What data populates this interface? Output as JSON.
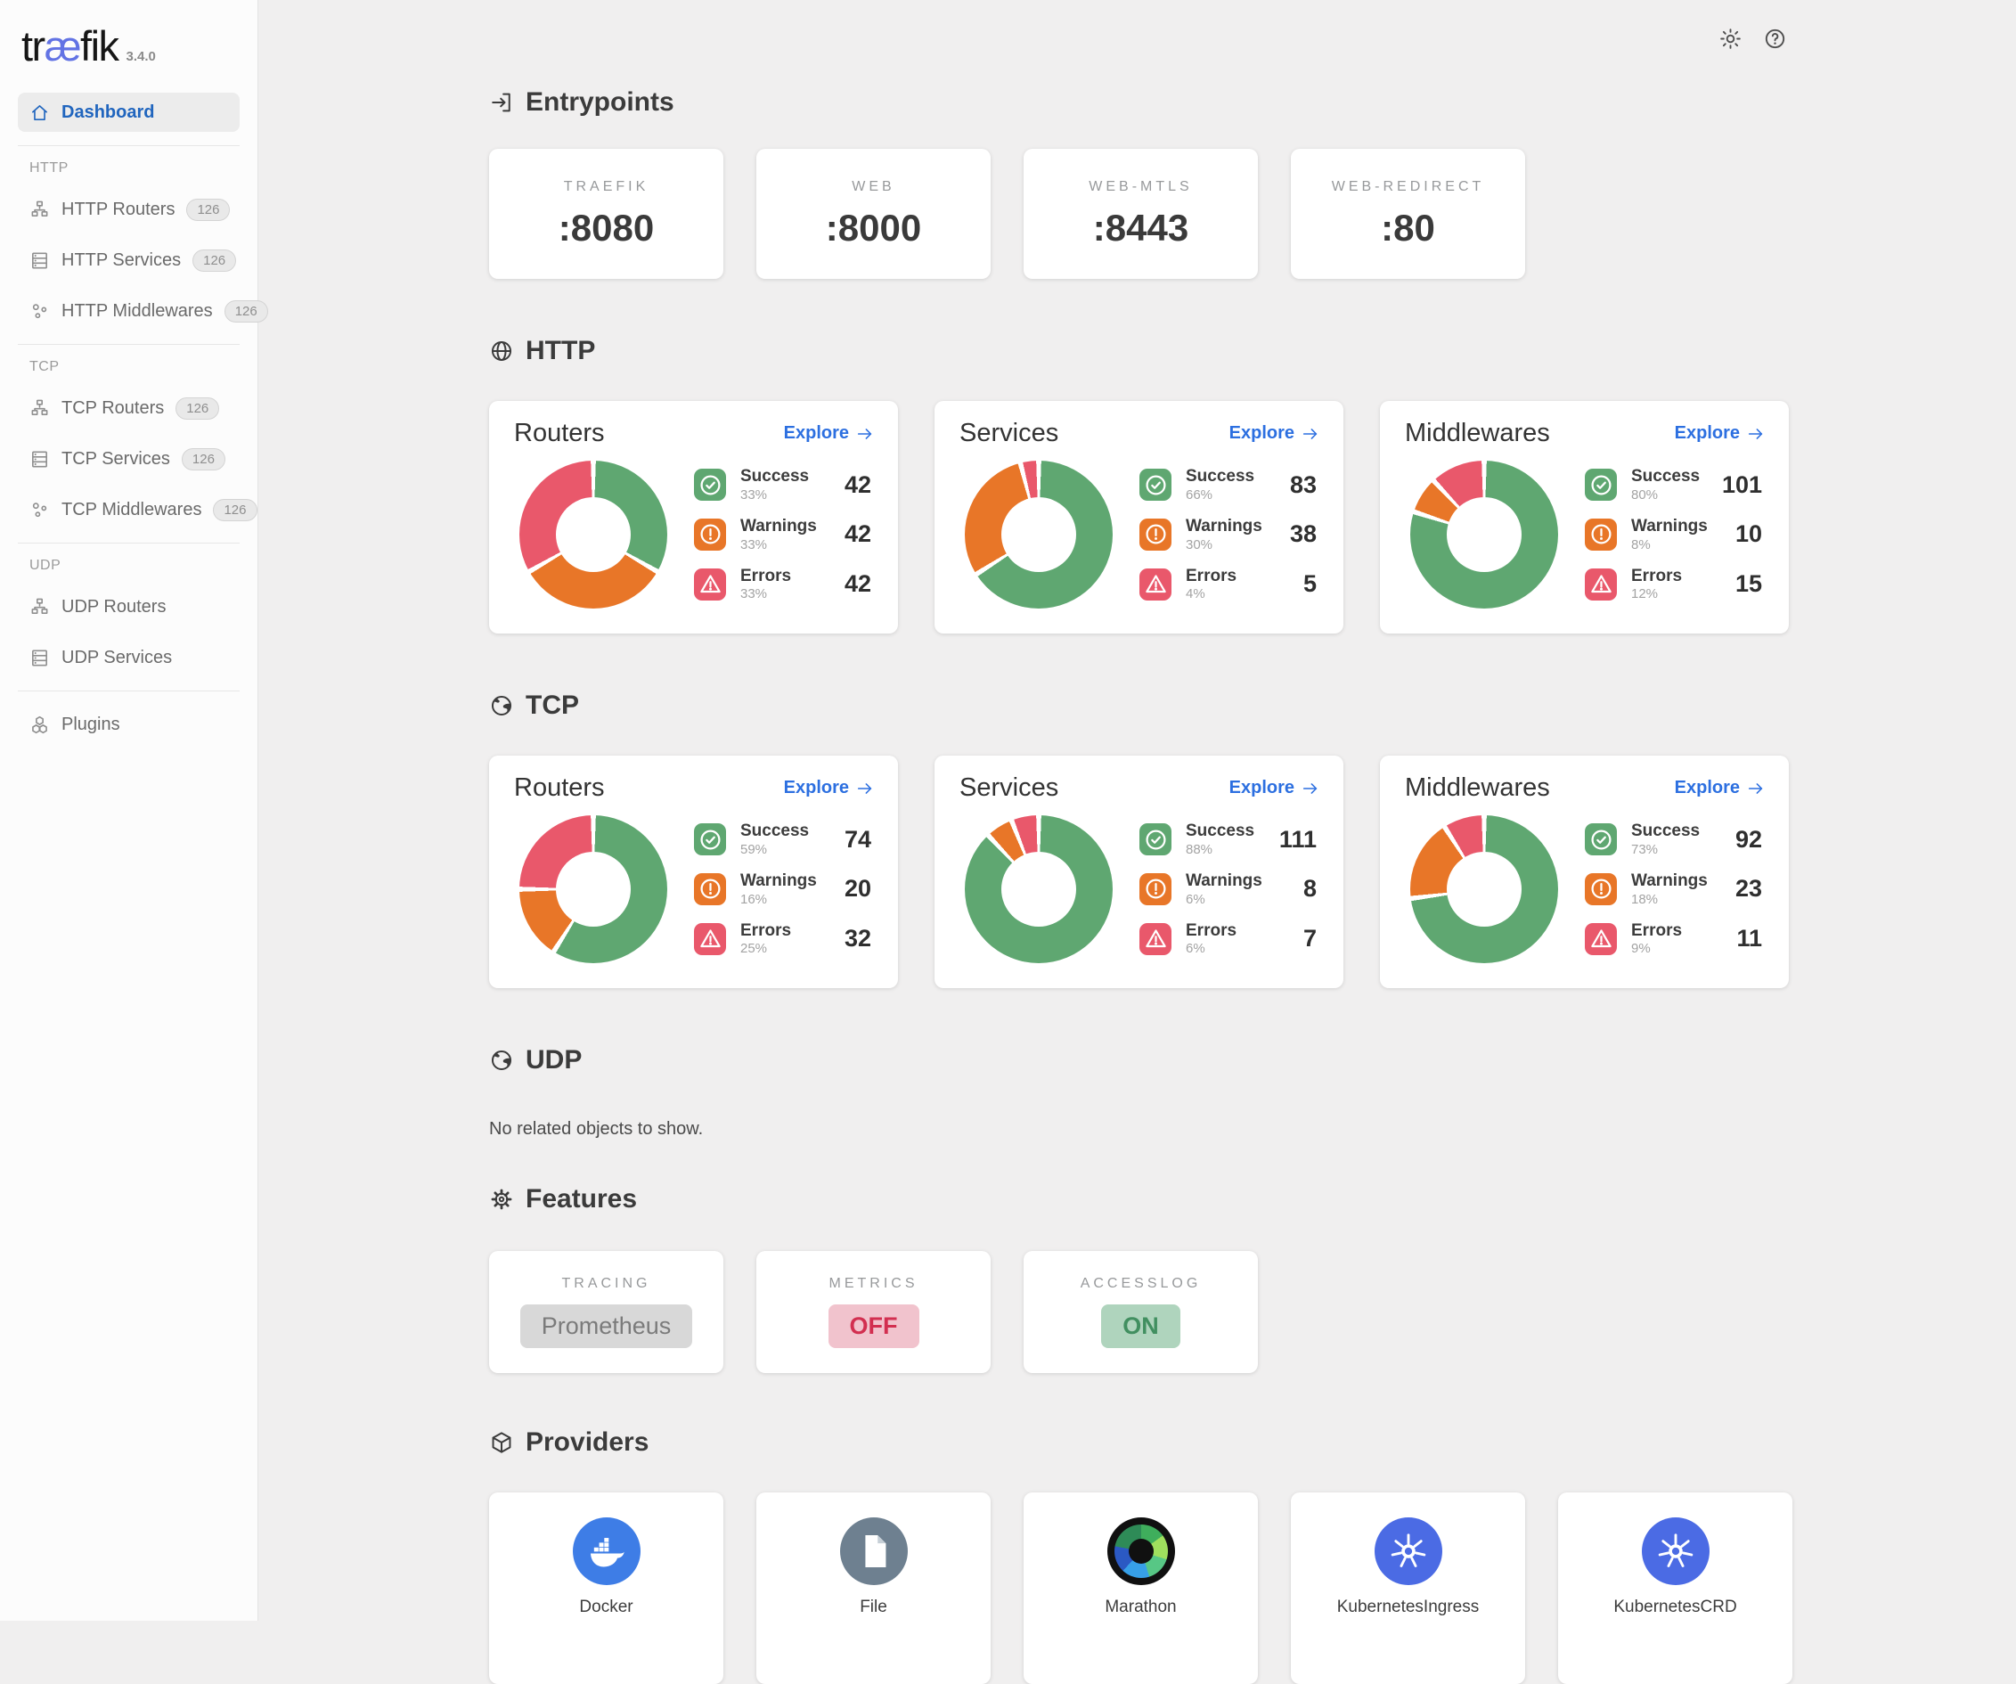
{
  "app": {
    "logo_prefix": "tr",
    "logo_ae": "æ",
    "logo_suffix": "fik",
    "version": "3.4.0"
  },
  "theme": {
    "success": "#5fa771",
    "warning": "#e87628",
    "error": "#e9586b",
    "link": "#2c6fe0",
    "active_link": "#2065be",
    "logo_accent": "#6273e4"
  },
  "topbar": {
    "icons": [
      {
        "name": "theme-toggle",
        "icon": "sun-icon"
      },
      {
        "name": "help",
        "icon": "help-icon"
      }
    ]
  },
  "sidebar": {
    "groups": [
      {
        "label": null,
        "items": [
          {
            "label": "Dashboard",
            "icon": "home-icon",
            "active": true
          }
        ]
      },
      {
        "label": "HTTP",
        "items": [
          {
            "label": "HTTP Routers",
            "icon": "routers-icon",
            "badge": "126"
          },
          {
            "label": "HTTP Services",
            "icon": "services-icon",
            "badge": "126"
          },
          {
            "label": "HTTP Middlewares",
            "icon": "middlewares-icon",
            "badge": "126"
          }
        ]
      },
      {
        "label": "TCP",
        "items": [
          {
            "label": "TCP Routers",
            "icon": "routers-icon",
            "badge": "126"
          },
          {
            "label": "TCP Services",
            "icon": "services-icon",
            "badge": "126"
          },
          {
            "label": "TCP Middlewares",
            "icon": "middlewares-icon",
            "badge": "126"
          }
        ]
      },
      {
        "label": "UDP",
        "items": [
          {
            "label": "UDP Routers",
            "icon": "routers-icon"
          },
          {
            "label": "UDP Services",
            "icon": "services-icon"
          }
        ]
      },
      {
        "label": null,
        "items": [
          {
            "label": "Plugins",
            "icon": "plugins-icon"
          }
        ]
      }
    ]
  },
  "entrypoints": {
    "title": "Entrypoints",
    "icon": "login-icon",
    "cards": [
      {
        "label": "TRAEFIK",
        "port": ":8080"
      },
      {
        "label": "WEB",
        "port": ":8000"
      },
      {
        "label": "WEB-MTLS",
        "port": ":8443"
      },
      {
        "label": "WEB-REDIRECT",
        "port": ":80"
      }
    ]
  },
  "stat_sections": [
    {
      "title": "HTTP",
      "icon": "globe-icon",
      "cards": [
        {
          "title": "Routers",
          "explore_label": "Explore",
          "stats": [
            {
              "label": "Success",
              "pct_label": "33%",
              "value": "42"
            },
            {
              "label": "Warnings",
              "pct_label": "33%",
              "value": "42"
            },
            {
              "label": "Errors",
              "pct_label": "33%",
              "value": "42"
            }
          ]
        },
        {
          "title": "Services",
          "explore_label": "Explore",
          "stats": [
            {
              "label": "Success",
              "pct_label": "66%",
              "value": "83"
            },
            {
              "label": "Warnings",
              "pct_label": "30%",
              "value": "38"
            },
            {
              "label": "Errors",
              "pct_label": "4%",
              "value": "5"
            }
          ]
        },
        {
          "title": "Middlewares",
          "explore_label": "Explore",
          "stats": [
            {
              "label": "Success",
              "pct_label": "80%",
              "value": "101"
            },
            {
              "label": "Warnings",
              "pct_label": "8%",
              "value": "10"
            },
            {
              "label": "Errors",
              "pct_label": "12%",
              "value": "15"
            }
          ]
        }
      ]
    },
    {
      "title": "TCP",
      "icon": "earth-icon",
      "cards": [
        {
          "title": "Routers",
          "explore_label": "Explore",
          "stats": [
            {
              "label": "Success",
              "pct_label": "59%",
              "value": "74"
            },
            {
              "label": "Warnings",
              "pct_label": "16%",
              "value": "20"
            },
            {
              "label": "Errors",
              "pct_label": "25%",
              "value": "32"
            }
          ]
        },
        {
          "title": "Services",
          "explore_label": "Explore",
          "stats": [
            {
              "label": "Success",
              "pct_label": "88%",
              "value": "111"
            },
            {
              "label": "Warnings",
              "pct_label": "6%",
              "value": "8"
            },
            {
              "label": "Errors",
              "pct_label": "6%",
              "value": "7"
            }
          ]
        },
        {
          "title": "Middlewares",
          "explore_label": "Explore",
          "stats": [
            {
              "label": "Success",
              "pct_label": "73%",
              "value": "92"
            },
            {
              "label": "Warnings",
              "pct_label": "18%",
              "value": "23"
            },
            {
              "label": "Errors",
              "pct_label": "9%",
              "value": "11"
            }
          ]
        }
      ]
    }
  ],
  "udp_section": {
    "title": "UDP",
    "icon": "earth-icon",
    "empty_message": "No related objects to show."
  },
  "features": {
    "title": "Features",
    "icon": "gear-icon",
    "cards": [
      {
        "label": "TRACING",
        "value": "Prometheus",
        "state": "muted"
      },
      {
        "label": "METRICS",
        "value": "OFF",
        "state": "danger"
      },
      {
        "label": "ACCESSLOG",
        "value": "ON",
        "state": "success"
      }
    ]
  },
  "providers": {
    "title": "Providers",
    "icon": "package-icon",
    "cards": [
      {
        "label": "Docker",
        "icon": "docker-logo"
      },
      {
        "label": "File",
        "icon": "file-logo"
      },
      {
        "label": "Marathon",
        "icon": "marathon-logo"
      },
      {
        "label": "KubernetesIngress",
        "icon": "kubernetes-logo"
      },
      {
        "label": "KubernetesCRD",
        "icon": "kubernetes-logo"
      }
    ]
  },
  "chart_data": [
    {
      "type": "pie",
      "title": "HTTP Routers",
      "labels": [
        "Success",
        "Warnings",
        "Errors"
      ],
      "percents": [
        33,
        33,
        33
      ],
      "values": [
        42,
        42,
        42
      ],
      "hole": 0.5,
      "legend_position": "right"
    },
    {
      "type": "pie",
      "title": "HTTP Services",
      "labels": [
        "Success",
        "Warnings",
        "Errors"
      ],
      "percents": [
        66,
        30,
        4
      ],
      "values": [
        83,
        38,
        5
      ],
      "hole": 0.5,
      "legend_position": "right"
    },
    {
      "type": "pie",
      "title": "HTTP Middlewares",
      "labels": [
        "Success",
        "Warnings",
        "Errors"
      ],
      "percents": [
        80,
        8,
        12
      ],
      "values": [
        101,
        10,
        15
      ],
      "hole": 0.5,
      "legend_position": "right"
    },
    {
      "type": "pie",
      "title": "TCP Routers",
      "labels": [
        "Success",
        "Warnings",
        "Errors"
      ],
      "percents": [
        59,
        16,
        25
      ],
      "values": [
        74,
        20,
        32
      ],
      "hole": 0.5,
      "legend_position": "right"
    },
    {
      "type": "pie",
      "title": "TCP Services",
      "labels": [
        "Success",
        "Warnings",
        "Errors"
      ],
      "percents": [
        88,
        6,
        6
      ],
      "values": [
        111,
        8,
        7
      ],
      "hole": 0.5,
      "legend_position": "right"
    },
    {
      "type": "pie",
      "title": "TCP Middlewares",
      "labels": [
        "Success",
        "Warnings",
        "Errors"
      ],
      "percents": [
        73,
        18,
        9
      ],
      "values": [
        92,
        23,
        11
      ],
      "hole": 0.5,
      "legend_position": "right"
    }
  ]
}
